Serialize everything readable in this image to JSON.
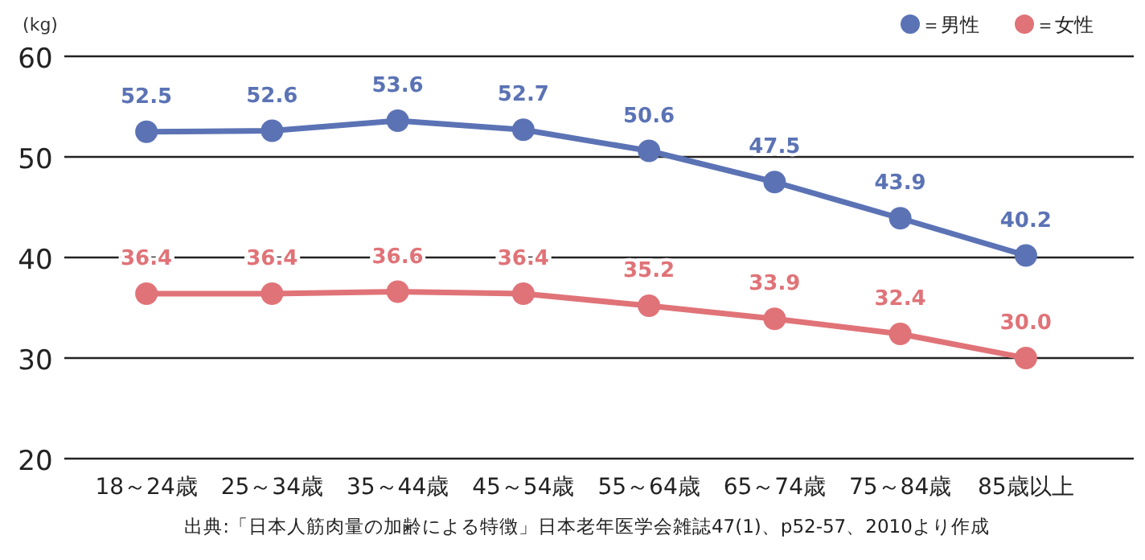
{
  "chart_data": {
    "type": "line",
    "ylabel": "(kg)",
    "categories": [
      "18～24歳",
      "25～34歳",
      "35～44歳",
      "45～54歳",
      "55～64歳",
      "65～74歳",
      "75～84歳",
      "85歳以上"
    ],
    "series": [
      {
        "name": "＝男性",
        "color": "#5b73b5",
        "values": [
          52.5,
          52.6,
          53.6,
          52.7,
          50.6,
          47.5,
          43.9,
          40.2
        ],
        "value_labels": [
          "52.5",
          "52.6",
          "53.6",
          "52.7",
          "50.6",
          "47.5",
          "43.9",
          "40.2"
        ]
      },
      {
        "name": "＝女性",
        "color": "#e07378",
        "values": [
          36.4,
          36.4,
          36.6,
          36.4,
          35.2,
          33.9,
          32.4,
          30.0
        ],
        "value_labels": [
          "36.4",
          "36.4",
          "36.6",
          "36.4",
          "35.2",
          "33.9",
          "32.4",
          "30.0"
        ]
      }
    ],
    "ylim": [
      20,
      60
    ],
    "yticks": [
      20,
      30,
      40,
      50,
      60
    ],
    "grid": "y",
    "legend": "top right",
    "marker": "circle",
    "annotations": [
      "出典:「日本人筋肉量の加齢による特徴」日本老年医学会雑誌47(1)、p52-57、2010より作成"
    ]
  }
}
